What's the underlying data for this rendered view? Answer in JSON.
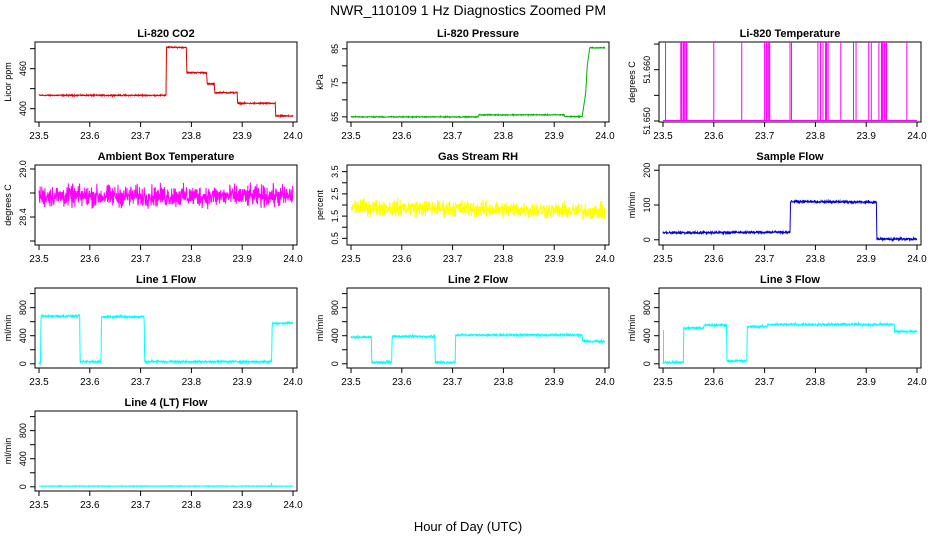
{
  "title": "NWR_110109  1 Hz Diagnostics Zoomed PM",
  "xlabel": "Hour of Day (UTC)",
  "x_ticks": [
    "23.5",
    "23.6",
    "23.7",
    "23.8",
    "23.9",
    "24.0"
  ],
  "chart_data": [
    {
      "type": "line",
      "title": "Li-820 CO2",
      "ylabel": "Licor ppm",
      "color": "#dd0000",
      "xlim": [
        23.5,
        24.0
      ],
      "ylim": [
        380,
        500
      ],
      "y_ticks": [
        400,
        430,
        460,
        490
      ],
      "y_tick_labels": [
        "400",
        "",
        "460",
        ""
      ],
      "series": [
        {
          "noise": 0.8,
          "spikes": [],
          "x": [
            23.5,
            23.75,
            23.751,
            23.79,
            23.791,
            23.83,
            23.831,
            23.845,
            23.846,
            23.89,
            23.891,
            23.965,
            23.966,
            24.0
          ],
          "y": [
            420,
            420,
            492,
            492,
            454,
            454,
            437,
            437,
            424,
            424,
            408,
            408,
            389,
            389
          ]
        }
      ]
    },
    {
      "type": "line",
      "title": "Li-820 Pressure",
      "ylabel": "kPa",
      "color": "#00b000",
      "xlim": [
        23.5,
        24.0
      ],
      "ylim": [
        63.5,
        87
      ],
      "y_ticks": [
        65,
        70,
        75,
        80,
        85
      ],
      "y_tick_labels": [
        "65",
        "",
        "75",
        "",
        "85"
      ],
      "series": [
        {
          "noise": 0.12,
          "spikes": [],
          "x": [
            23.5,
            23.75,
            23.751,
            23.92,
            23.921,
            23.955,
            23.962,
            23.965,
            23.97,
            24.0
          ],
          "y": [
            65,
            65,
            65.6,
            65.6,
            65.1,
            65.1,
            72,
            80,
            85.3,
            85.3
          ]
        }
      ]
    },
    {
      "type": "line",
      "title": "Li-820 Temperature",
      "ylabel": "degrees C",
      "color": "#ff00ff",
      "xlim": [
        23.5,
        24.0
      ],
      "ylim": [
        51.6498,
        51.6654
      ],
      "y_ticks": [
        51.65,
        51.655,
        51.66,
        51.665
      ],
      "y_tick_labels": [
        "51.650",
        "",
        "51.660",
        ""
      ],
      "series": [
        {
          "noise": 0,
          "spikes": [
            23.505,
            23.535,
            23.537,
            23.54,
            23.542,
            23.545,
            23.547,
            23.6,
            23.655,
            23.7,
            23.703,
            23.705,
            23.708,
            23.71,
            23.75,
            23.753,
            23.805,
            23.81,
            23.815,
            23.82,
            23.822,
            23.825,
            23.85,
            23.875,
            23.88,
            23.905,
            23.91,
            23.925,
            23.93,
            23.932,
            23.935,
            23.937,
            23.94,
            23.98
          ],
          "x": [
            23.5,
            24.0
          ],
          "y": [
            51.6501,
            51.6501
          ],
          "spike_top": 51.6654
        }
      ]
    },
    {
      "type": "line",
      "title": "Ambient Box Temperature",
      "ylabel": "degrees C",
      "color": "#ff00ff",
      "xlim": [
        23.5,
        24.0
      ],
      "ylim": [
        28.05,
        29.05
      ],
      "y_ticks": [
        28.1,
        28.4,
        28.7,
        29.0
      ],
      "y_tick_labels": [
        "",
        "28.4",
        "",
        "29.0"
      ],
      "series": [
        {
          "noise": 0.11,
          "spikes": [],
          "x": [
            23.5,
            24.0
          ],
          "y": [
            28.66,
            28.66
          ]
        }
      ]
    },
    {
      "type": "line",
      "title": "Gas Stream RH",
      "ylabel": "percent",
      "color": "#ffff00",
      "xlim": [
        23.5,
        24.0
      ],
      "ylim": [
        0.2,
        3.8
      ],
      "y_ticks": [
        0.5,
        1.0,
        1.5,
        2.0,
        2.5,
        3.0,
        3.5
      ],
      "y_tick_labels": [
        "0.5",
        "",
        "1.5",
        "",
        "2.5",
        "",
        "3.5"
      ],
      "series": [
        {
          "noise": 0.3,
          "spikes": [],
          "x": [
            23.5,
            23.7,
            24.0
          ],
          "y": [
            1.9,
            1.85,
            1.7
          ]
        }
      ]
    },
    {
      "type": "line",
      "title": "Sample Flow",
      "ylabel": "ml/min",
      "color": "#0000dd",
      "xlim": [
        23.5,
        24.0
      ],
      "ylim": [
        -15,
        215
      ],
      "y_ticks": [
        0,
        100,
        200
      ],
      "y_tick_labels": [
        "0",
        "100",
        "200"
      ],
      "series": [
        {
          "noise": 3,
          "spikes": [],
          "x": [
            23.5,
            23.75,
            23.751,
            23.92,
            23.921,
            24.0
          ],
          "y": [
            20,
            22,
            110,
            108,
            2,
            2
          ]
        }
      ]
    },
    {
      "type": "line",
      "title": "Line 1 Flow",
      "ylabel": "ml/min",
      "color": "#00ffff",
      "xlim": [
        23.5,
        24.0
      ],
      "ylim": [
        -60,
        1080
      ],
      "y_ticks": [
        0,
        200,
        400,
        600,
        800,
        1000
      ],
      "y_tick_labels": [
        "0",
        "",
        "400",
        "",
        "800",
        ""
      ],
      "series": [
        {
          "noise": 14,
          "spikes": [],
          "x": [
            23.5,
            23.503,
            23.504,
            23.58,
            23.581,
            23.622,
            23.623,
            23.707,
            23.708,
            23.958,
            23.959,
            24.0
          ],
          "y": [
            0,
            0,
            680,
            680,
            30,
            30,
            670,
            670,
            30,
            30,
            580,
            580
          ]
        }
      ]
    },
    {
      "type": "line",
      "title": "Line 2 Flow",
      "ylabel": "ml/min",
      "color": "#00ffff",
      "xlim": [
        23.5,
        24.0
      ],
      "ylim": [
        -60,
        1080
      ],
      "y_ticks": [
        0,
        200,
        400,
        600,
        800,
        1000
      ],
      "y_tick_labels": [
        "0",
        "",
        "400",
        "",
        "800",
        ""
      ],
      "series": [
        {
          "noise": 14,
          "spikes": [],
          "x": [
            23.5,
            23.54,
            23.541,
            23.58,
            23.581,
            23.665,
            23.666,
            23.705,
            23.706,
            23.955,
            23.956,
            24.0
          ],
          "y": [
            380,
            380,
            20,
            20,
            390,
            390,
            20,
            20,
            410,
            410,
            320,
            320
          ]
        }
      ]
    },
    {
      "type": "line",
      "title": "Line 3 Flow",
      "ylabel": "ml/min",
      "color": "#00ffff",
      "xlim": [
        23.5,
        24.0
      ],
      "ylim": [
        -60,
        1080
      ],
      "y_ticks": [
        0,
        200,
        400,
        600,
        800,
        1000
      ],
      "y_tick_labels": [
        "0",
        "",
        "400",
        "",
        "800",
        ""
      ],
      "series": [
        {
          "noise": 14,
          "spikes": [
            [
              23.501,
              480
            ]
          ],
          "x": [
            23.5,
            23.54,
            23.541,
            23.58,
            23.581,
            23.625,
            23.626,
            23.665,
            23.666,
            23.705,
            23.706,
            23.955,
            23.956,
            24.0
          ],
          "y": [
            20,
            20,
            510,
            510,
            550,
            550,
            40,
            40,
            530,
            530,
            560,
            560,
            460,
            460
          ]
        }
      ]
    },
    {
      "type": "line",
      "title": "Line 4 (LT) Flow",
      "ylabel": "ml/min",
      "color": "#00ffff",
      "xlim": [
        23.5,
        24.0
      ],
      "ylim": [
        -60,
        1080
      ],
      "y_ticks": [
        0,
        200,
        400,
        600,
        800,
        1000
      ],
      "y_tick_labels": [
        "0",
        "",
        "400",
        "",
        "800",
        ""
      ],
      "series": [
        {
          "noise": 4,
          "spikes": [
            [
              23.958,
              60
            ]
          ],
          "x": [
            23.5,
            24.0
          ],
          "y": [
            10,
            10
          ]
        }
      ]
    }
  ]
}
